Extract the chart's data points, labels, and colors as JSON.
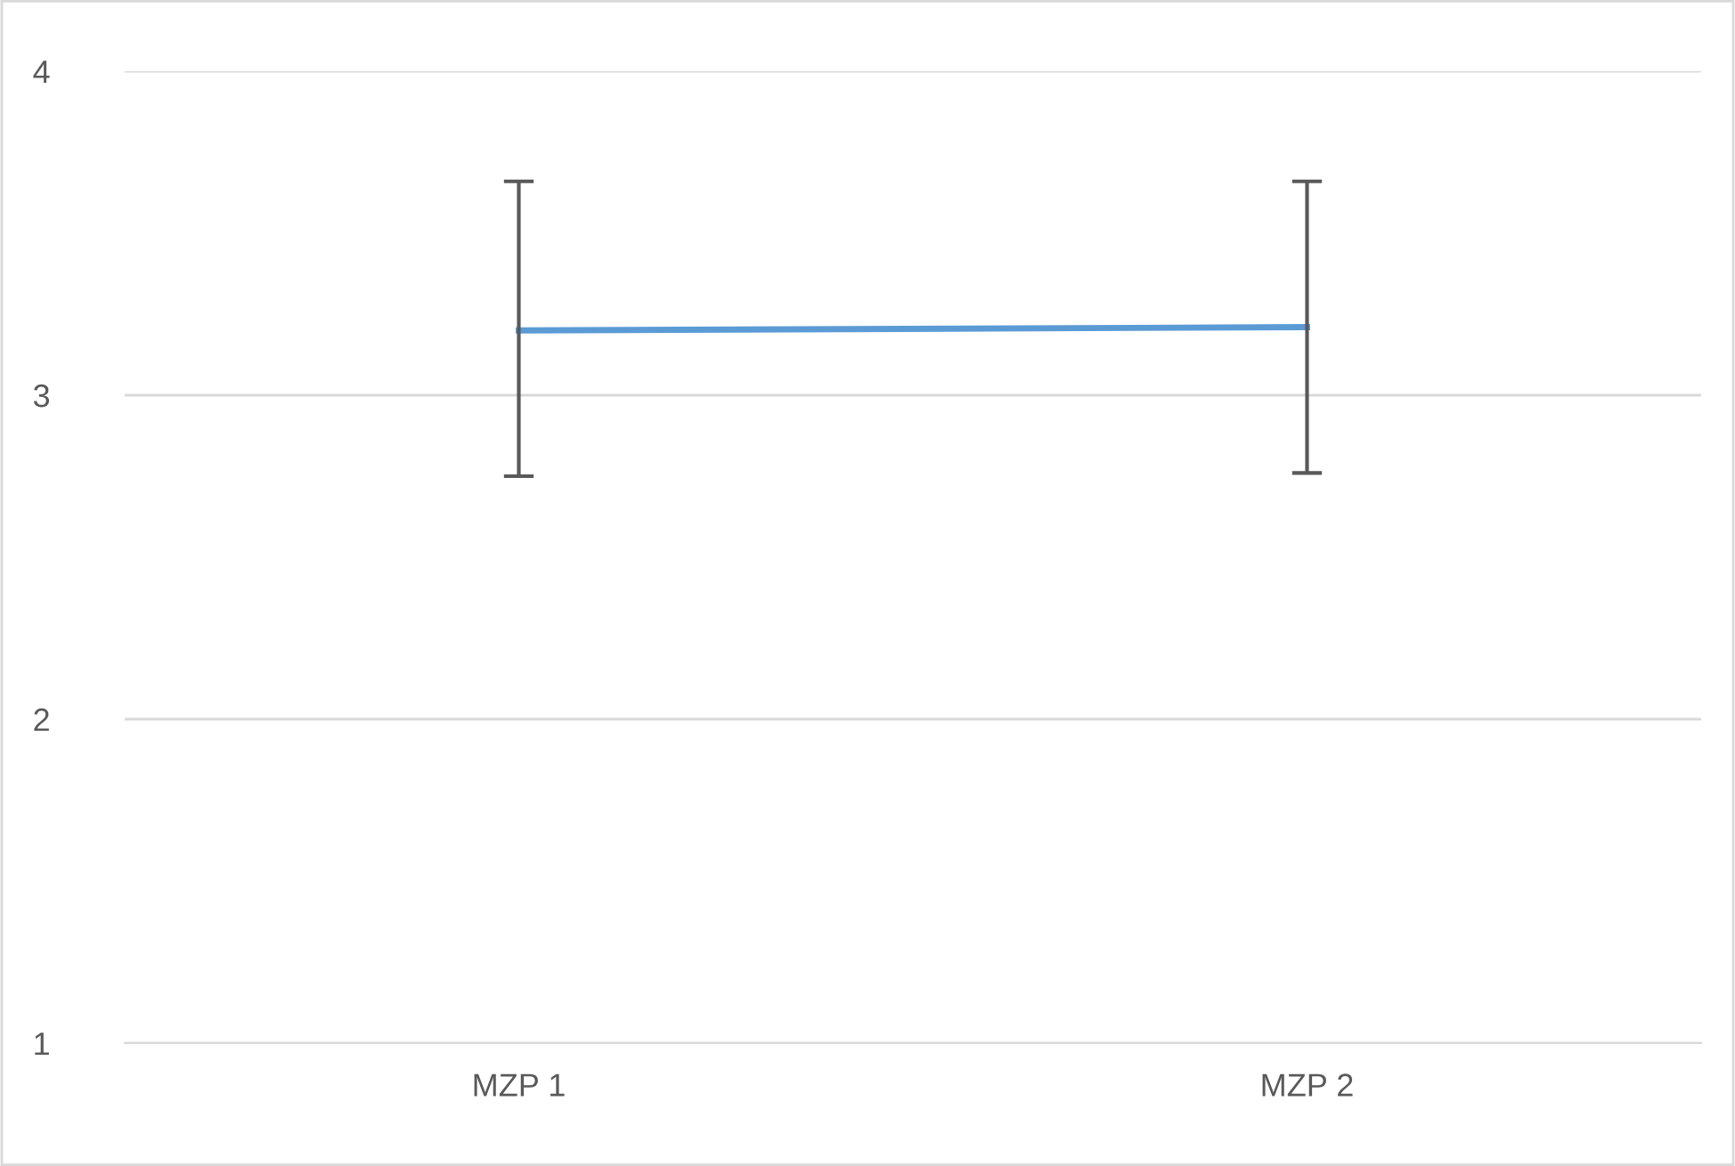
{
  "chart_data": {
    "type": "line",
    "categories": [
      "MZP 1",
      "MZP 2"
    ],
    "series": [
      {
        "color": "#5b9bd5",
        "values": [
          3.2,
          3.21
        ],
        "errors": [
          [
            2.75,
            3.66
          ],
          [
            2.76,
            3.66
          ]
        ]
      }
    ],
    "ylim": [
      1,
      4
    ],
    "yticks": [
      1,
      2,
      3,
      4
    ],
    "grid": "y",
    "marker": "none",
    "line_style": "solid"
  }
}
